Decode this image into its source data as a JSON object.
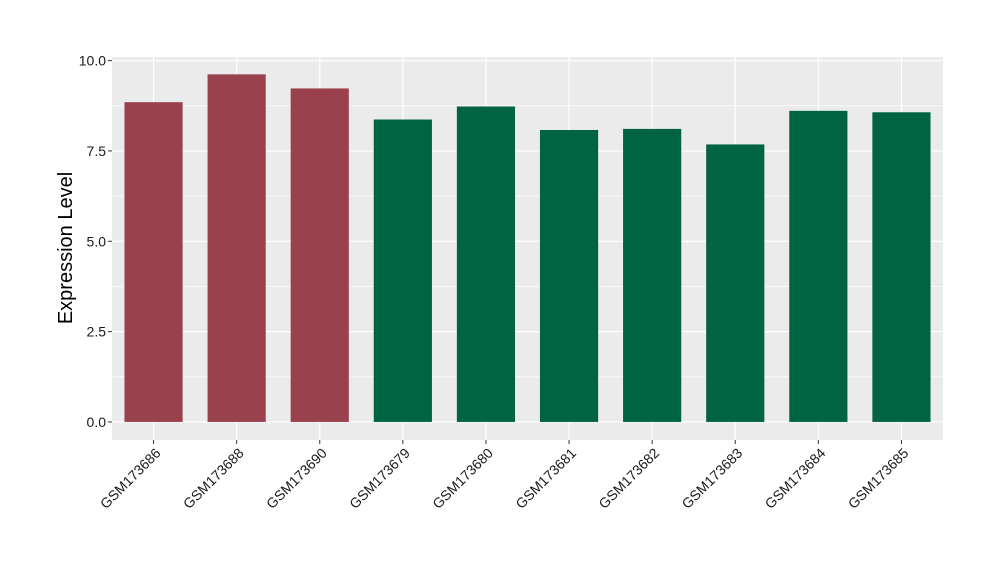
{
  "chart_data": {
    "type": "bar",
    "title": "",
    "xlabel": "",
    "ylabel": "Expression Level",
    "categories": [
      "GSM173686",
      "GSM173688",
      "GSM173690",
      "GSM173679",
      "GSM173680",
      "GSM173681",
      "GSM173682",
      "GSM173683",
      "GSM173684",
      "GSM173685"
    ],
    "values": [
      8.85,
      9.62,
      9.23,
      8.37,
      8.73,
      8.08,
      8.11,
      7.68,
      8.61,
      8.57
    ],
    "bar_colors": [
      "#9a414e",
      "#9a414e",
      "#9a414e",
      "#006442",
      "#006442",
      "#006442",
      "#006442",
      "#006442",
      "#006442",
      "#006442"
    ],
    "ylim": [
      -0.5,
      10.1
    ],
    "yticks": [
      0.0,
      2.5,
      5.0,
      7.5,
      10.0
    ],
    "ytick_labels": [
      "0.0",
      "2.5",
      "5.0",
      "7.5",
      "10.0"
    ],
    "grid": true,
    "panel_background": "#ebebeb",
    "grid_color": "#ffffff"
  }
}
